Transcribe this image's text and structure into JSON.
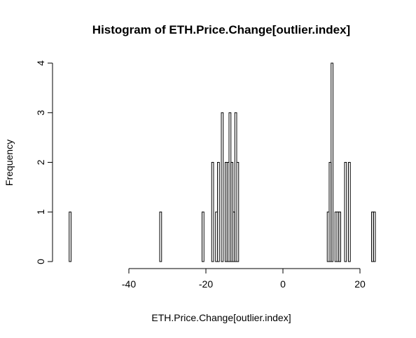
{
  "chart_data": {
    "type": "bar",
    "title": "Histogram of ETH.Price.Change[outlier.index]",
    "xlabel": "ETH.Price.Change[outlier.index]",
    "ylabel": "Frequency",
    "bin_width": 0.5,
    "x_range": [
      -55.5,
      24
    ],
    "xlim": [
      -56,
      24
    ],
    "ylim": [
      0,
      4
    ],
    "x_ticks": [
      -40,
      -20,
      0,
      20
    ],
    "y_ticks": [
      0,
      1,
      2,
      3,
      4
    ],
    "x_tick_labels": [
      "-40",
      "-20",
      "0",
      "20"
    ],
    "y_tick_labels": [
      "0",
      "1",
      "2",
      "3",
      "4"
    ],
    "bins": [
      {
        "start": -55.5,
        "count": 1
      },
      {
        "start": -32.0,
        "count": 1
      },
      {
        "start": -21.0,
        "count": 1
      },
      {
        "start": -18.5,
        "count": 2
      },
      {
        "start": -17.5,
        "count": 1
      },
      {
        "start": -17.0,
        "count": 2
      },
      {
        "start": -16.0,
        "count": 3
      },
      {
        "start": -15.0,
        "count": 2
      },
      {
        "start": -14.5,
        "count": 2
      },
      {
        "start": -14.0,
        "count": 3
      },
      {
        "start": -13.5,
        "count": 2
      },
      {
        "start": -13.0,
        "count": 1
      },
      {
        "start": -12.5,
        "count": 3
      },
      {
        "start": -12.0,
        "count": 2
      },
      {
        "start": 11.5,
        "count": 1
      },
      {
        "start": 12.0,
        "count": 2
      },
      {
        "start": 12.5,
        "count": 4
      },
      {
        "start": 13.5,
        "count": 1
      },
      {
        "start": 14.0,
        "count": 1
      },
      {
        "start": 14.5,
        "count": 1
      },
      {
        "start": 16.0,
        "count": 2
      },
      {
        "start": 17.0,
        "count": 2
      },
      {
        "start": 23.0,
        "count": 1
      },
      {
        "start": 23.5,
        "count": 1
      }
    ]
  }
}
